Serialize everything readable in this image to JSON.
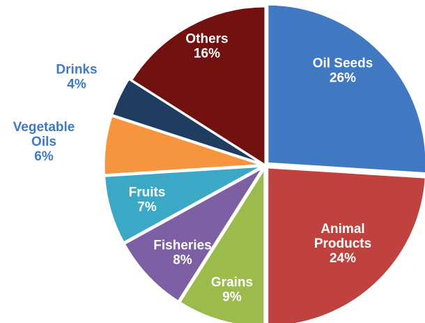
{
  "chart_data": {
    "type": "pie",
    "title": "",
    "slices": [
      {
        "label": "Oil Seeds",
        "value": 26,
        "value_label": "26%",
        "color": "#4079C2",
        "label_color": "#ffffff",
        "label_lines": [
          "Oil Seeds"
        ]
      },
      {
        "label": "Animal Products",
        "value": 24,
        "value_label": "24%",
        "color": "#C0423F",
        "label_color": "#ffffff",
        "label_lines": [
          "Animal",
          "Products"
        ]
      },
      {
        "label": "Grains",
        "value": 9,
        "value_label": "9%",
        "color": "#9BBB4C",
        "label_color": "#ffffff",
        "label_lines": [
          "Grains"
        ]
      },
      {
        "label": "Fisheries",
        "value": 8,
        "value_label": "8%",
        "color": "#7D5FA3",
        "label_color": "#ffffff",
        "label_lines": [
          "Fisheries"
        ]
      },
      {
        "label": "Fruits",
        "value": 7,
        "value_label": "7%",
        "color": "#3BA9C6",
        "label_color": "#ffffff",
        "label_lines": [
          "Fruits"
        ]
      },
      {
        "label": "Vegetable Oils",
        "value": 6,
        "value_label": "6%",
        "color": "#F6953D",
        "label_color": "#4079C2",
        "label_lines": [
          "Vegetable",
          "Oils"
        ]
      },
      {
        "label": "Drinks",
        "value": 4,
        "value_label": "4%",
        "color": "#1F3C61",
        "label_color": "#4079C2",
        "label_lines": [
          "Drinks"
        ]
      },
      {
        "label": "Others",
        "value": 16,
        "value_label": "16%",
        "color": "#721210",
        "label_color": "#ffffff",
        "label_lines": [
          "Others"
        ]
      }
    ],
    "legend": "none"
  }
}
